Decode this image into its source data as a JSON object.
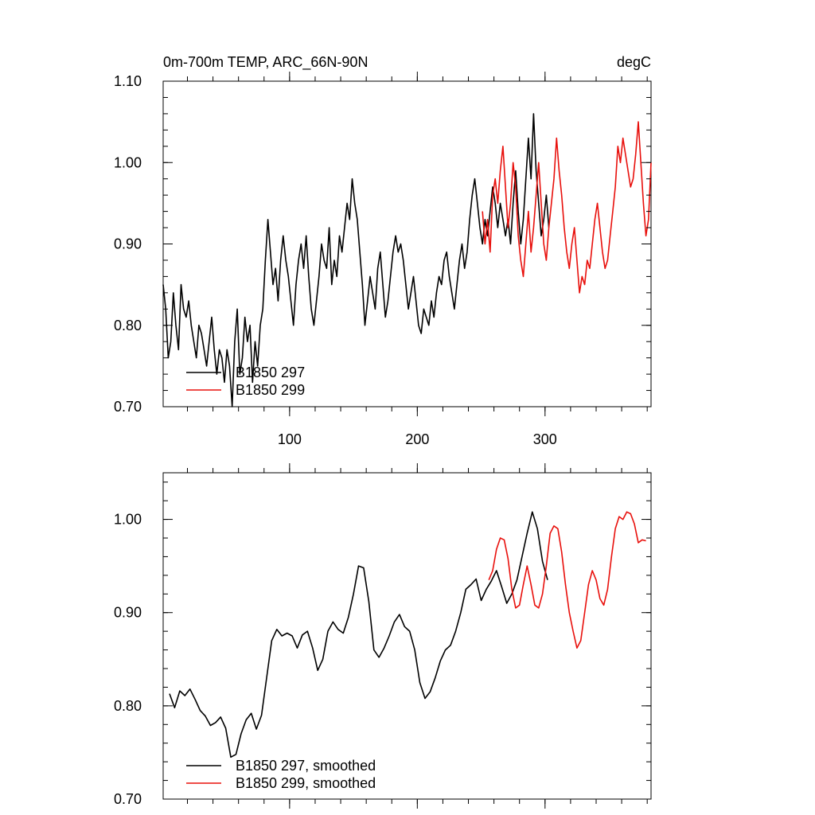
{
  "chart_data": [
    {
      "type": "line",
      "title": "0m-700m TEMP, ARC_66N-90N",
      "units": "degC",
      "xlabel": "",
      "ylabel": "",
      "xlim": [
        1,
        383
      ],
      "ylim": [
        0.7,
        1.1
      ],
      "xticks": [
        100,
        200,
        300
      ],
      "xtick_labels": [
        "100",
        "200",
        "300"
      ],
      "yticks": [
        0.7,
        0.8,
        0.9,
        1.0,
        1.1
      ],
      "ytick_labels": [
        "0.70",
        "0.80",
        "0.90",
        "1.00",
        "1.10"
      ],
      "legend_position": "bottom-left",
      "series": [
        {
          "name": "B1850 297",
          "color": "#000000",
          "x": [
            1,
            3,
            5,
            7,
            9,
            11,
            13,
            15,
            17,
            19,
            21,
            23,
            25,
            27,
            29,
            31,
            33,
            35,
            37,
            39,
            41,
            43,
            45,
            47,
            49,
            51,
            53,
            55,
            57,
            59,
            61,
            63,
            65,
            67,
            69,
            71,
            73,
            75,
            77,
            79,
            81,
            83,
            85,
            87,
            89,
            91,
            93,
            95,
            97,
            99,
            101,
            103,
            105,
            107,
            109,
            111,
            113,
            115,
            117,
            119,
            121,
            123,
            125,
            127,
            129,
            131,
            133,
            135,
            137,
            139,
            141,
            143,
            145,
            147,
            149,
            151,
            153,
            155,
            157,
            159,
            161,
            163,
            165,
            167,
            169,
            171,
            173,
            175,
            177,
            179,
            181,
            183,
            185,
            187,
            189,
            191,
            193,
            195,
            197,
            199,
            201,
            203,
            205,
            207,
            209,
            211,
            213,
            215,
            217,
            219,
            221,
            223,
            225,
            227,
            229,
            231,
            233,
            235,
            237,
            239,
            241,
            243,
            245,
            247,
            249,
            251,
            253,
            255,
            257,
            259,
            261,
            263,
            265,
            267,
            269,
            271,
            273,
            275,
            277,
            279,
            281,
            283,
            285,
            287,
            289,
            291,
            293,
            295,
            297,
            299,
            301,
            303
          ],
          "y": [
            0.85,
            0.82,
            0.76,
            0.78,
            0.84,
            0.8,
            0.77,
            0.85,
            0.82,
            0.81,
            0.83,
            0.8,
            0.78,
            0.76,
            0.8,
            0.79,
            0.77,
            0.75,
            0.78,
            0.81,
            0.77,
            0.74,
            0.77,
            0.76,
            0.73,
            0.77,
            0.75,
            0.7,
            0.78,
            0.82,
            0.74,
            0.76,
            0.81,
            0.78,
            0.8,
            0.73,
            0.78,
            0.75,
            0.8,
            0.82,
            0.88,
            0.93,
            0.89,
            0.85,
            0.87,
            0.83,
            0.88,
            0.91,
            0.88,
            0.86,
            0.83,
            0.8,
            0.85,
            0.88,
            0.9,
            0.87,
            0.91,
            0.86,
            0.82,
            0.8,
            0.83,
            0.86,
            0.9,
            0.88,
            0.87,
            0.92,
            0.85,
            0.88,
            0.86,
            0.91,
            0.89,
            0.92,
            0.95,
            0.93,
            0.98,
            0.95,
            0.93,
            0.89,
            0.85,
            0.8,
            0.83,
            0.86,
            0.84,
            0.82,
            0.87,
            0.89,
            0.85,
            0.81,
            0.83,
            0.86,
            0.89,
            0.91,
            0.89,
            0.9,
            0.88,
            0.85,
            0.82,
            0.84,
            0.86,
            0.83,
            0.8,
            0.79,
            0.82,
            0.81,
            0.8,
            0.83,
            0.81,
            0.84,
            0.86,
            0.85,
            0.88,
            0.89,
            0.86,
            0.84,
            0.82,
            0.85,
            0.88,
            0.9,
            0.87,
            0.89,
            0.93,
            0.96,
            0.98,
            0.95,
            0.92,
            0.9,
            0.93,
            0.91,
            0.94,
            0.97,
            0.95,
            0.92,
            0.95,
            0.93,
            0.91,
            0.93,
            0.9,
            0.95,
            0.99,
            0.94,
            0.9,
            0.93,
            0.98,
            1.03,
            0.98,
            1.06,
            0.99,
            0.95,
            0.91,
            0.93,
            0.96,
            0.92
          ]
        },
        {
          "name": "B1850 299",
          "color": "#e8100c",
          "x": [
            251,
            253,
            255,
            257,
            259,
            261,
            263,
            265,
            267,
            269,
            271,
            273,
            275,
            277,
            279,
            281,
            283,
            285,
            287,
            289,
            291,
            293,
            295,
            297,
            299,
            301,
            303,
            305,
            307,
            309,
            311,
            313,
            315,
            317,
            319,
            321,
            323,
            325,
            327,
            329,
            331,
            333,
            335,
            337,
            339,
            341,
            343,
            345,
            347,
            349,
            351,
            353,
            355,
            357,
            359,
            361,
            363,
            365,
            367,
            369,
            371,
            373,
            375,
            377,
            379,
            381,
            383
          ],
          "y": [
            0.94,
            0.9,
            0.93,
            0.89,
            0.96,
            0.98,
            0.95,
            0.99,
            1.02,
            0.97,
            0.92,
            0.95,
            1.0,
            0.97,
            0.91,
            0.88,
            0.86,
            0.9,
            0.94,
            0.89,
            0.92,
            0.96,
            1.0,
            0.95,
            0.9,
            0.88,
            0.92,
            0.95,
            0.98,
            1.03,
            0.99,
            0.96,
            0.92,
            0.89,
            0.87,
            0.9,
            0.92,
            0.88,
            0.84,
            0.86,
            0.85,
            0.88,
            0.87,
            0.9,
            0.93,
            0.95,
            0.92,
            0.89,
            0.87,
            0.88,
            0.91,
            0.94,
            0.97,
            1.02,
            1.0,
            1.03,
            1.01,
            0.99,
            0.97,
            0.98,
            1.01,
            1.05,
            1.0,
            0.95,
            0.91,
            0.93,
            1.0
          ]
        }
      ]
    },
    {
      "type": "line",
      "title": "",
      "xlabel": "",
      "ylabel": "",
      "xlim": [
        1,
        383
      ],
      "ylim": [
        0.7,
        1.05
      ],
      "xticks": [
        100,
        200,
        300
      ],
      "xtick_labels": [],
      "yticks": [
        0.7,
        0.8,
        0.9,
        1.0
      ],
      "ytick_labels": [
        "0.70",
        "0.80",
        "0.90",
        "1.00"
      ],
      "legend_position": "bottom-left",
      "series": [
        {
          "name": "B1850 297, smoothed",
          "color": "#000000",
          "x": [
            6,
            10,
            14,
            18,
            22,
            26,
            30,
            34,
            38,
            42,
            46,
            50,
            54,
            58,
            62,
            66,
            70,
            74,
            78,
            82,
            86,
            90,
            94,
            98,
            102,
            106,
            110,
            114,
            118,
            122,
            126,
            130,
            134,
            138,
            142,
            146,
            150,
            154,
            158,
            162,
            166,
            170,
            174,
            178,
            182,
            186,
            190,
            194,
            198,
            202,
            206,
            210,
            214,
            218,
            222,
            226,
            230,
            234,
            238,
            242,
            246,
            250,
            254,
            258,
            262,
            266,
            270,
            274,
            278,
            282,
            286,
            290,
            294,
            298,
            302
          ],
          "y": [
            0.813,
            0.798,
            0.816,
            0.811,
            0.818,
            0.807,
            0.795,
            0.789,
            0.779,
            0.782,
            0.788,
            0.776,
            0.745,
            0.748,
            0.77,
            0.785,
            0.792,
            0.775,
            0.79,
            0.83,
            0.87,
            0.882,
            0.875,
            0.878,
            0.875,
            0.862,
            0.876,
            0.88,
            0.862,
            0.838,
            0.85,
            0.88,
            0.89,
            0.882,
            0.878,
            0.895,
            0.92,
            0.95,
            0.948,
            0.912,
            0.86,
            0.852,
            0.862,
            0.875,
            0.89,
            0.898,
            0.885,
            0.88,
            0.86,
            0.825,
            0.808,
            0.815,
            0.83,
            0.848,
            0.86,
            0.865,
            0.88,
            0.9,
            0.925,
            0.93,
            0.936,
            0.913,
            0.925,
            0.934,
            0.945,
            0.928,
            0.91,
            0.92,
            0.935,
            0.96,
            0.985,
            1.008,
            0.99,
            0.955,
            0.935
          ]
        },
        {
          "name": "B1850 299, smoothed",
          "color": "#e8100c",
          "x": [
            256,
            259,
            262,
            265,
            268,
            271,
            274,
            277,
            280,
            283,
            286,
            289,
            292,
            295,
            298,
            301,
            304,
            307,
            310,
            313,
            316,
            319,
            322,
            325,
            328,
            331,
            334,
            337,
            340,
            343,
            346,
            349,
            352,
            355,
            358,
            361,
            364,
            367,
            370,
            373,
            376,
            379
          ],
          "y": [
            0.935,
            0.945,
            0.968,
            0.98,
            0.978,
            0.958,
            0.925,
            0.905,
            0.908,
            0.93,
            0.95,
            0.93,
            0.908,
            0.905,
            0.92,
            0.95,
            0.985,
            0.993,
            0.99,
            0.965,
            0.93,
            0.9,
            0.88,
            0.862,
            0.87,
            0.9,
            0.93,
            0.945,
            0.935,
            0.915,
            0.908,
            0.925,
            0.96,
            0.99,
            1.003,
            1.0,
            1.008,
            1.006,
            0.995,
            0.975,
            0.978,
            0.977
          ]
        }
      ]
    }
  ]
}
